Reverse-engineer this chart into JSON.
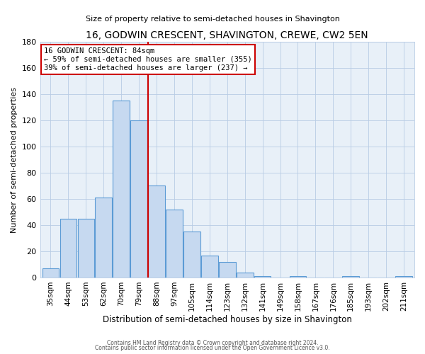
{
  "title": "16, GODWIN CRESCENT, SHAVINGTON, CREWE, CW2 5EN",
  "subtitle": "Size of property relative to semi-detached houses in Shavington",
  "xlabel": "Distribution of semi-detached houses by size in Shavington",
  "ylabel": "Number of semi-detached properties",
  "bar_color": "#c6d9f0",
  "bar_edge_color": "#5b9bd5",
  "categories": [
    "35sqm",
    "44sqm",
    "53sqm",
    "62sqm",
    "70sqm",
    "79sqm",
    "88sqm",
    "97sqm",
    "105sqm",
    "114sqm",
    "123sqm",
    "132sqm",
    "141sqm",
    "149sqm",
    "158sqm",
    "167sqm",
    "176sqm",
    "185sqm",
    "193sqm",
    "202sqm",
    "211sqm"
  ],
  "values": [
    7,
    45,
    45,
    61,
    135,
    120,
    70,
    52,
    35,
    17,
    12,
    4,
    1,
    0,
    1,
    0,
    0,
    1,
    0,
    0,
    1
  ],
  "vline_x_idx": 6,
  "vline_color": "#cc0000",
  "annotation_title": "16 GODWIN CRESCENT: 84sqm",
  "annotation_line1": "← 59% of semi-detached houses are smaller (355)",
  "annotation_line2": "39% of semi-detached houses are larger (237) →",
  "annotation_box_color": "#ffffff",
  "annotation_box_edge": "#cc0000",
  "ylim": [
    0,
    180
  ],
  "yticks": [
    0,
    20,
    40,
    60,
    80,
    100,
    120,
    140,
    160,
    180
  ],
  "footer1": "Contains HM Land Registry data © Crown copyright and database right 2024.",
  "footer2": "Contains public sector information licensed under the Open Government Licence v3.0.",
  "bg_color": "#e8f0f8"
}
